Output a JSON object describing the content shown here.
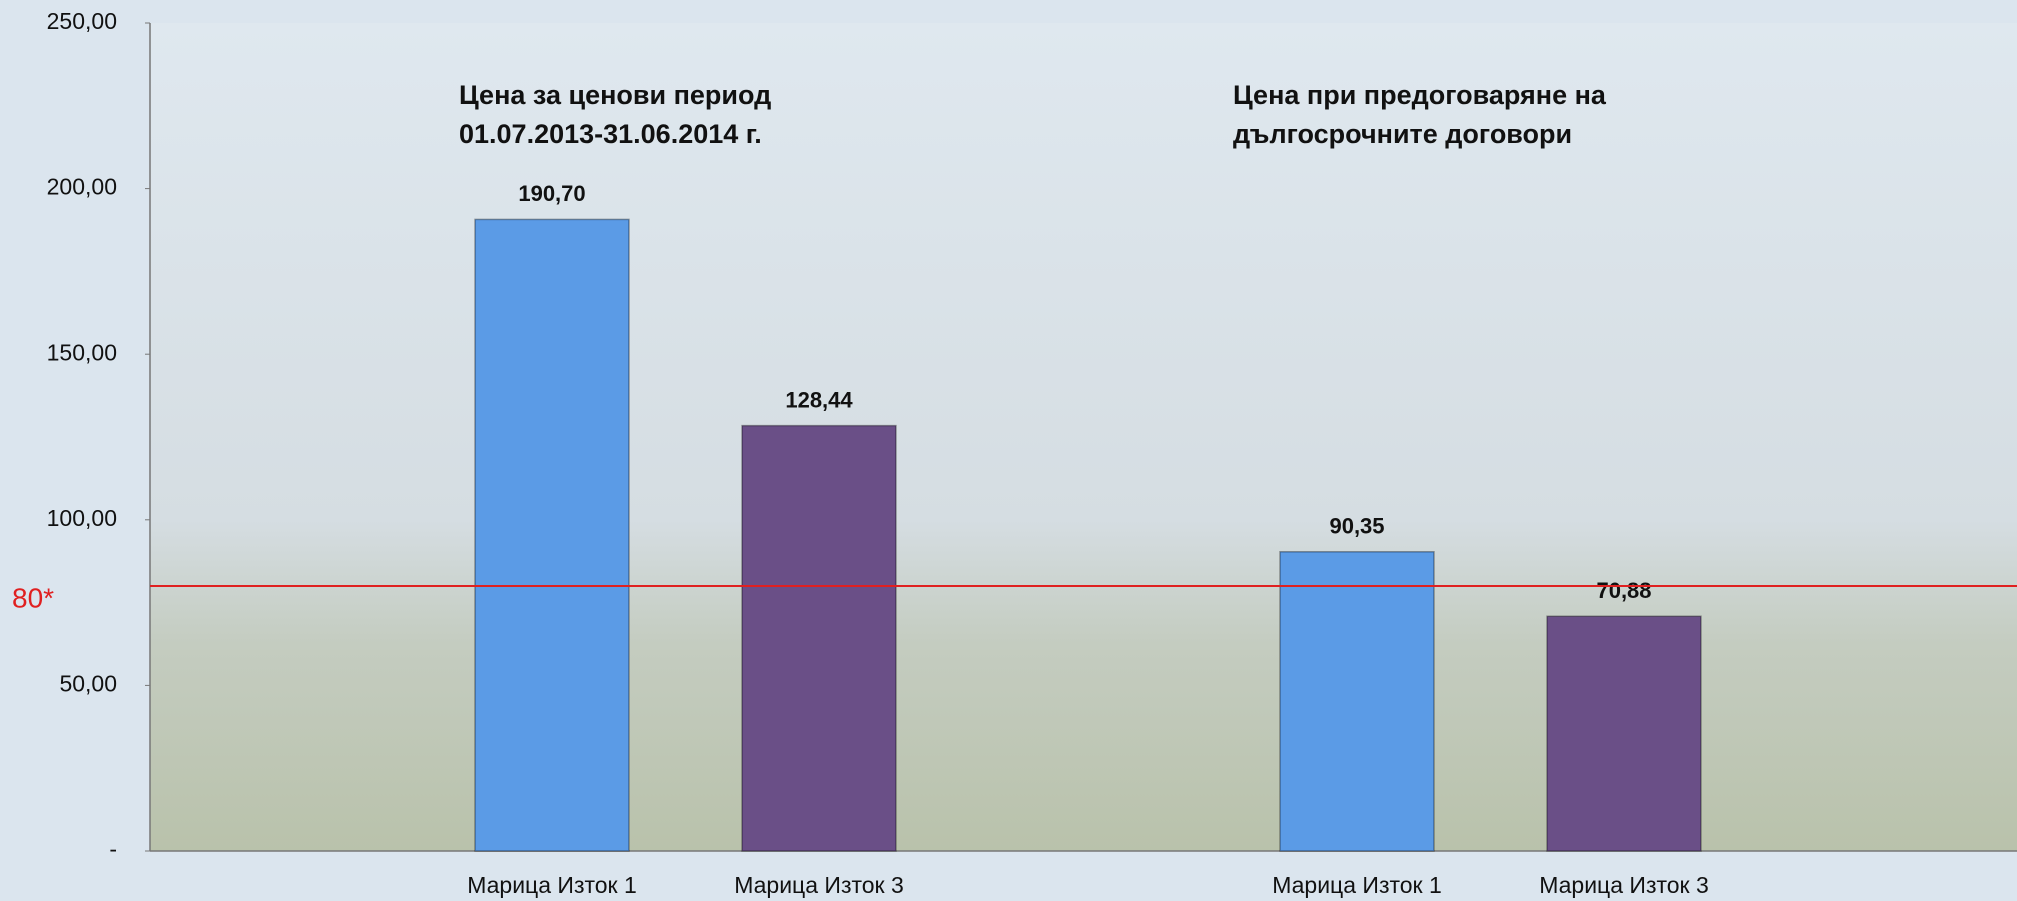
{
  "chart_data": {
    "type": "bar",
    "categories": [
      "Марица Изток 1",
      "Марица Изток 3",
      "Марица Изток 1",
      "Марица Изток 3"
    ],
    "values": [
      190.7,
      128.44,
      90.35,
      70.88
    ],
    "value_labels": [
      "190,70",
      "128,44",
      "90,35",
      "70,88"
    ],
    "colors": [
      "#5b9be6",
      "#6a4f87",
      "#5b9be6",
      "#6a4f87"
    ],
    "ylim": [
      0,
      250
    ],
    "yticks": [
      {
        "value": 0,
        "label": "-"
      },
      {
        "value": 50,
        "label": "50,00"
      },
      {
        "value": 100,
        "label": "100,00"
      },
      {
        "value": 150,
        "label": "150,00"
      },
      {
        "value": 200,
        "label": "200,00"
      },
      {
        "value": 250,
        "label": "250,00"
      }
    ],
    "reference_line": {
      "value": 80,
      "label": "80*",
      "color": "#e02020"
    },
    "annotations": [
      {
        "lines": [
          "Цена за ценови период",
          "01.07.2013-31.06.2014 г."
        ]
      },
      {
        "lines": [
          "Цена при предоговаряне на",
          "дългосрочните договори"
        ]
      }
    ]
  }
}
